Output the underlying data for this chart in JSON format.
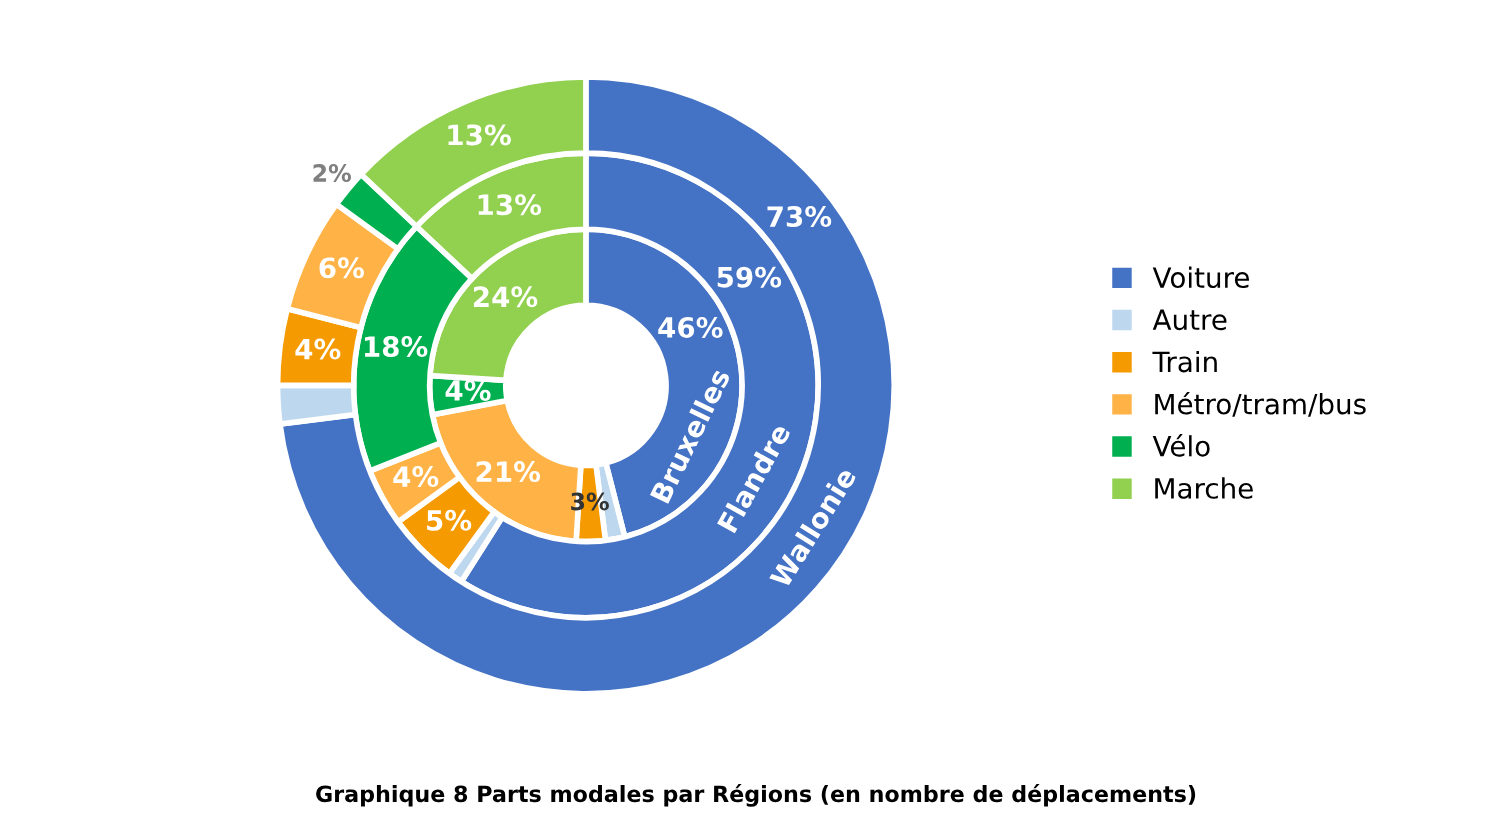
{
  "chart_data": {
    "type": "donut",
    "title": "Graphique 8 Parts modales par Régions (en nombre de déplacements)",
    "legend": "right",
    "categories": [
      "Voiture",
      "Autre",
      "Train",
      "Métro/tram/bus",
      "Vélo",
      "Marche"
    ],
    "colors": [
      "#4472c4",
      "#bdd7ee",
      "#f59a00",
      "#ffb347",
      "#00b050",
      "#92d050"
    ],
    "series": [
      {
        "name": "Bruxelles",
        "values": [
          46,
          2,
          3,
          21,
          4,
          24
        ],
        "value_labels": [
          "46%",
          null,
          "3%",
          "21%",
          "4%",
          "24%"
        ]
      },
      {
        "name": "Flandre",
        "values": [
          59,
          1,
          5,
          4,
          18,
          13
        ],
        "value_labels": [
          "59%",
          null,
          "5%",
          "4%",
          "18%",
          "13%"
        ]
      },
      {
        "name": "Wallonie",
        "values": [
          73,
          2,
          4,
          6,
          2,
          13
        ],
        "value_labels": [
          "73%",
          null,
          "4%",
          "6%",
          "2%",
          "13%"
        ]
      }
    ]
  }
}
